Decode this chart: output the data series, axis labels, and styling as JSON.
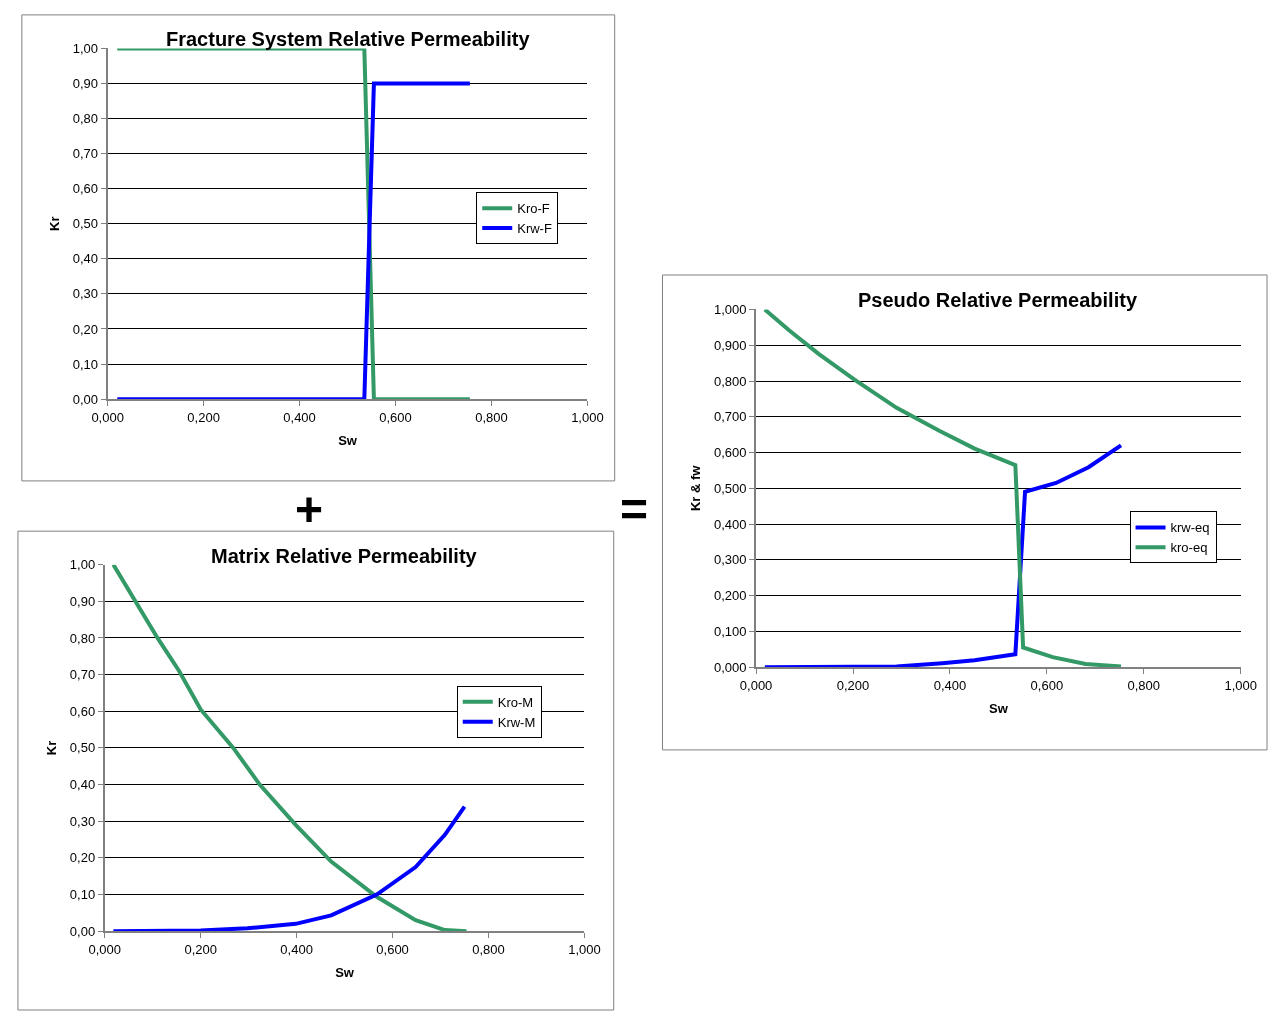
{
  "chart_data": [
    {
      "type": "line",
      "title": "Fracture System Relative Permeability",
      "xlabel": "Sw",
      "ylabel": "Kr",
      "grid": "y",
      "legend": "right",
      "marker": "none",
      "line_style": "solid",
      "xlim": [
        0,
        1
      ],
      "xticks": [
        {
          "value": 0,
          "label": "0,000"
        },
        {
          "value": 0.2,
          "label": "0,200"
        },
        {
          "value": 0.4,
          "label": "0,400"
        },
        {
          "value": 0.6,
          "label": "0,600"
        },
        {
          "value": 0.8,
          "label": "0,800"
        },
        {
          "value": 1,
          "label": "1,000"
        }
      ],
      "ylim": [
        0,
        1
      ],
      "yticks": [
        {
          "value": 0,
          "label": "0,00"
        },
        {
          "value": 0.1,
          "label": "0,10"
        },
        {
          "value": 0.2,
          "label": "0,20"
        },
        {
          "value": 0.3,
          "label": "0,30"
        },
        {
          "value": 0.4,
          "label": "0,40"
        },
        {
          "value": 0.5,
          "label": "0,50"
        },
        {
          "value": 0.6,
          "label": "0,60"
        },
        {
          "value": 0.7,
          "label": "0,70"
        },
        {
          "value": 0.8,
          "label": "0,80"
        },
        {
          "value": 0.9,
          "label": "0,90"
        },
        {
          "value": 1,
          "label": "1,00"
        }
      ],
      "series": [
        {
          "name": "Kro-F",
          "color": "#339966",
          "x": [
            0.02,
            0.535,
            0.555,
            0.755
          ],
          "values": [
            1.0,
            1.0,
            0.0,
            0.0
          ]
        },
        {
          "name": "Krw-F",
          "color": "#0000ff",
          "x": [
            0.02,
            0.535,
            0.555,
            0.755
          ],
          "values": [
            0.0,
            0.0,
            0.9,
            0.9
          ]
        }
      ]
    },
    {
      "type": "line",
      "title": "Matrix Relative Permeability",
      "xlabel": "Sw",
      "ylabel": "Kr",
      "grid": "y",
      "legend": "right",
      "marker": "none",
      "line_style": "solid",
      "annotations": [
        "+"
      ],
      "xlim": [
        0,
        1
      ],
      "xticks": [
        {
          "value": 0,
          "label": "0,000"
        },
        {
          "value": 0.2,
          "label": "0,200"
        },
        {
          "value": 0.4,
          "label": "0,400"
        },
        {
          "value": 0.6,
          "label": "0,600"
        },
        {
          "value": 0.8,
          "label": "0,800"
        },
        {
          "value": 1,
          "label": "1,000"
        }
      ],
      "ylim": [
        0,
        1
      ],
      "yticks": [
        {
          "value": 0,
          "label": "0,00"
        },
        {
          "value": 0.1,
          "label": "0,10"
        },
        {
          "value": 0.2,
          "label": "0,20"
        },
        {
          "value": 0.3,
          "label": "0,30"
        },
        {
          "value": 0.4,
          "label": "0,40"
        },
        {
          "value": 0.5,
          "label": "0,50"
        },
        {
          "value": 0.6,
          "label": "0,60"
        },
        {
          "value": 0.7,
          "label": "0,70"
        },
        {
          "value": 0.8,
          "label": "0,80"
        },
        {
          "value": 0.9,
          "label": "0,90"
        },
        {
          "value": 1,
          "label": "1,00"
        }
      ],
      "series": [
        {
          "name": "Kro-M",
          "color": "#339966",
          "x": [
            0.018,
            0.11,
            0.155,
            0.2,
            0.268,
            0.323,
            0.398,
            0.472,
            0.567,
            0.648,
            0.709,
            0.754
          ],
          "values": [
            1.0,
            0.8,
            0.71,
            0.605,
            0.5,
            0.4,
            0.29,
            0.19,
            0.094,
            0.03,
            0.003,
            0.0
          ]
        },
        {
          "name": "Krw-M",
          "color": "#0000ff",
          "x": [
            0.018,
            0.2,
            0.297,
            0.398,
            0.472,
            0.567,
            0.648,
            0.709,
            0.75
          ],
          "values": [
            0.0,
            0.002,
            0.008,
            0.02,
            0.043,
            0.1,
            0.175,
            0.263,
            0.34
          ]
        }
      ]
    },
    {
      "type": "line",
      "title": "Pseudo Relative Permeability",
      "xlabel": "Sw",
      "ylabel": "Kr & fw",
      "grid": "y",
      "legend": "right",
      "marker": "none",
      "line_style": "solid",
      "annotations": [
        "="
      ],
      "xlim": [
        0,
        1
      ],
      "xticks": [
        {
          "value": 0,
          "label": "0,000"
        },
        {
          "value": 0.2,
          "label": "0,200"
        },
        {
          "value": 0.4,
          "label": "0,400"
        },
        {
          "value": 0.6,
          "label": "0,600"
        },
        {
          "value": 0.8,
          "label": "0,800"
        },
        {
          "value": 1,
          "label": "1,000"
        }
      ],
      "ylim": [
        0,
        1
      ],
      "yticks": [
        {
          "value": 0,
          "label": "0,000"
        },
        {
          "value": 0.1,
          "label": "0,100"
        },
        {
          "value": 0.2,
          "label": "0,200"
        },
        {
          "value": 0.3,
          "label": "0,300"
        },
        {
          "value": 0.4,
          "label": "0,400"
        },
        {
          "value": 0.5,
          "label": "0,500"
        },
        {
          "value": 0.6,
          "label": "0,600"
        },
        {
          "value": 0.7,
          "label": "0,700"
        },
        {
          "value": 0.8,
          "label": "0,800"
        },
        {
          "value": 0.9,
          "label": "0,900"
        },
        {
          "value": 1,
          "label": "1,000"
        }
      ],
      "series": [
        {
          "name": "krw-eq",
          "color": "#0000ff",
          "x": [
            0.018,
            0.29,
            0.384,
            0.451,
            0.535,
            0.555,
            0.619,
            0.686,
            0.753
          ],
          "values": [
            0.0,
            0.002,
            0.011,
            0.019,
            0.036,
            0.49,
            0.515,
            0.559,
            0.62
          ]
        },
        {
          "name": "kro-eq",
          "color": "#339966",
          "x": [
            0.018,
            0.068,
            0.129,
            0.203,
            0.29,
            0.378,
            0.451,
            0.535,
            0.551,
            0.612,
            0.68,
            0.753
          ],
          "values": [
            1.0,
            0.942,
            0.876,
            0.804,
            0.725,
            0.661,
            0.611,
            0.565,
            0.055,
            0.028,
            0.009,
            0.002
          ]
        }
      ]
    }
  ]
}
